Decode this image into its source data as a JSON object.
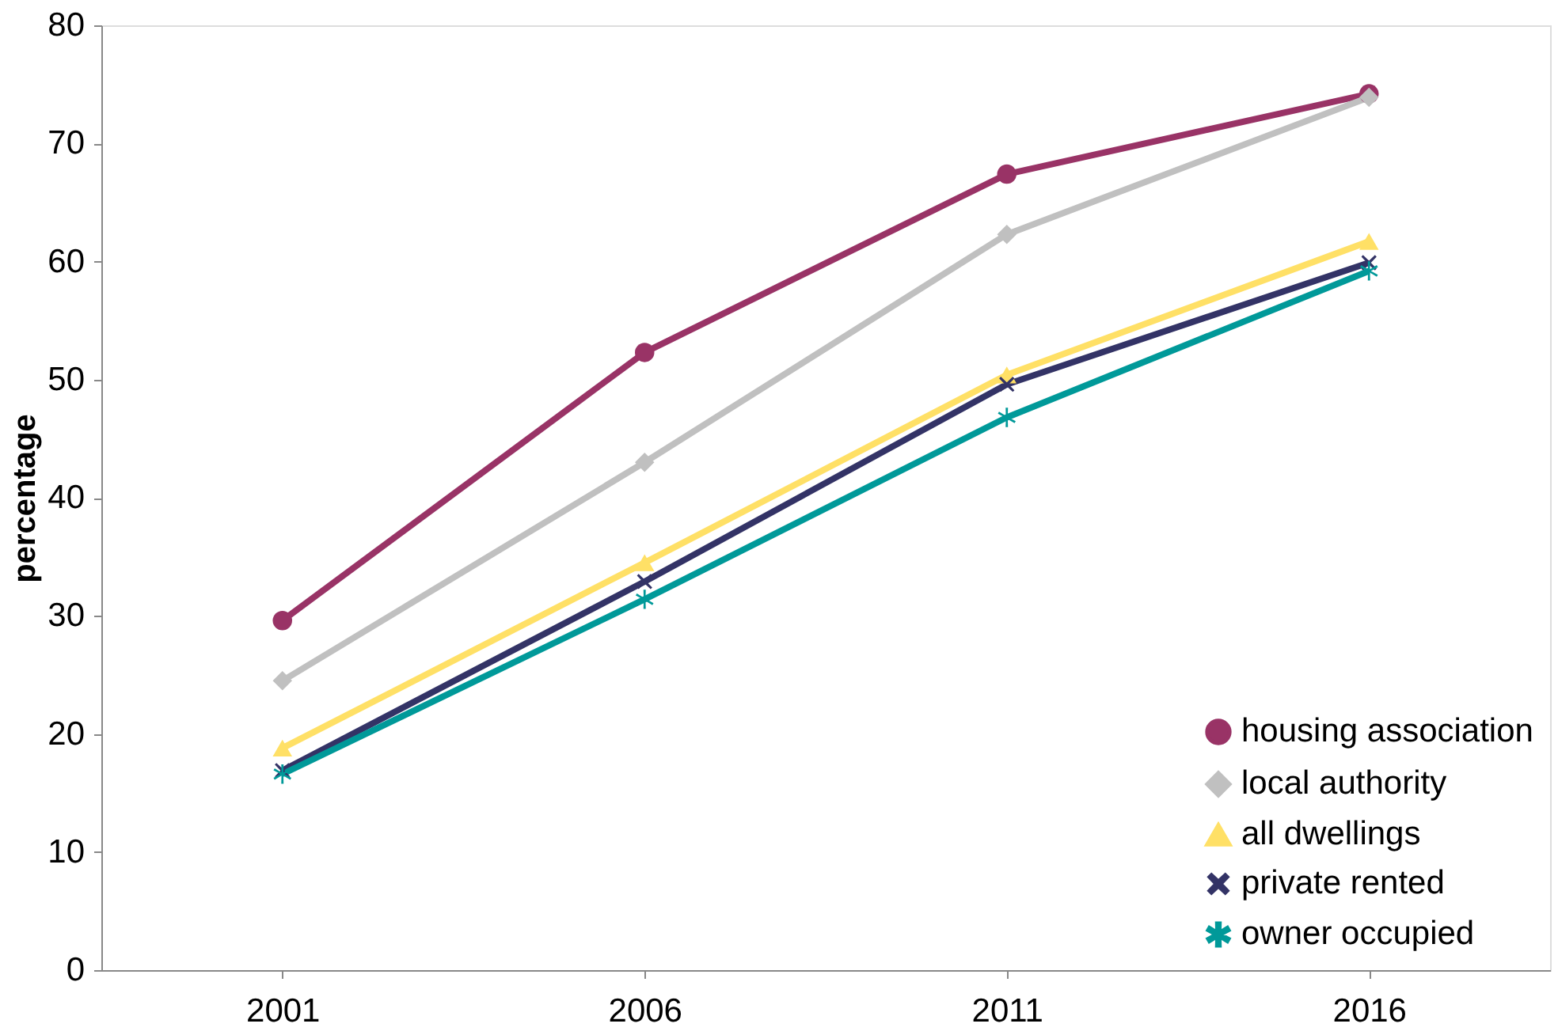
{
  "chart_data": {
    "type": "line",
    "ylabel": "percentage",
    "categories": [
      "2001",
      "2006",
      "2011",
      "2016"
    ],
    "ylim": [
      0,
      80
    ],
    "yticks": [
      0,
      10,
      20,
      30,
      40,
      50,
      60,
      70,
      80
    ],
    "grid": false,
    "legend": "bottom right",
    "series": [
      {
        "name": "housing association",
        "color": "#993366",
        "marker": "circle",
        "values": [
          29.6,
          52.3,
          67.4,
          74.2
        ]
      },
      {
        "name": "local authority",
        "color": "#c0c0c0",
        "marker": "diamond",
        "values": [
          24.5,
          43.0,
          62.3,
          73.9
        ]
      },
      {
        "name": "all dwellings",
        "color": "#ffe066",
        "marker": "triangle",
        "values": [
          18.8,
          34.5,
          50.4,
          61.7
        ]
      },
      {
        "name": "private rented",
        "color": "#333366",
        "marker": "cross",
        "values": [
          16.9,
          32.9,
          49.6,
          59.9
        ]
      },
      {
        "name": "owner occupied",
        "color": "#009999",
        "marker": "star",
        "values": [
          16.6,
          31.4,
          46.8,
          59.2
        ]
      }
    ]
  }
}
